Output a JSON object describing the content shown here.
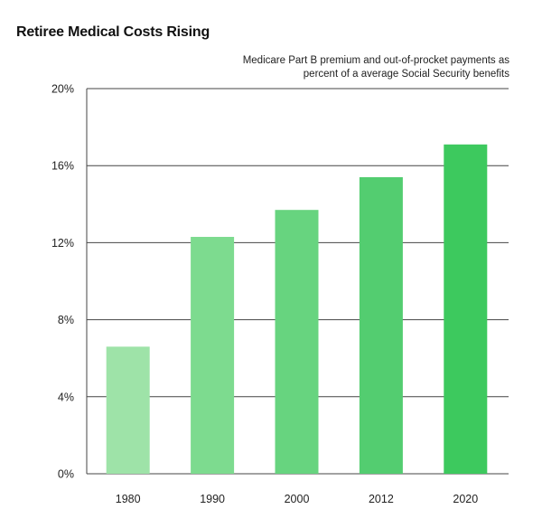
{
  "title": "Retiree Medical Costs Rising",
  "subtitle_lines": [
    "Medicare Part B premium and out-of-procket payments as",
    "percent of a average Social Security benefits"
  ],
  "chart_data": {
    "type": "bar",
    "title": "Retiree Medical Costs Rising",
    "subtitle": "Medicare Part B premium and out-of-procket payments as percent of a average Social Security benefits",
    "xlabel": "",
    "ylabel": "",
    "categories": [
      "1980",
      "1990",
      "2000",
      "2012",
      "2020"
    ],
    "values": [
      6.6,
      12.3,
      13.7,
      15.4,
      17.1
    ],
    "ylim": [
      0,
      20
    ],
    "yticks": [
      0,
      4,
      8,
      12,
      16,
      20
    ],
    "ytick_labels": [
      "0%",
      "4%",
      "8%",
      "12%",
      "16%",
      "20%"
    ],
    "grid": true,
    "colors": [
      "#9ee3a8",
      "#7ddb8f",
      "#67d47f",
      "#53cd70",
      "#3dc95e"
    ]
  }
}
